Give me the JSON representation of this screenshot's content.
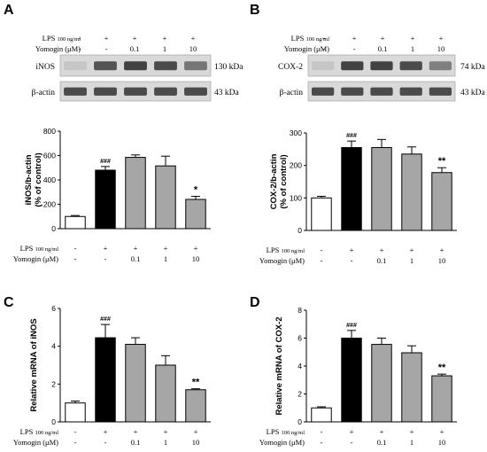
{
  "condition_labels": {
    "lps_label": "LPS",
    "lps_unit": "100 ng/ml",
    "yomogin_label": "Yomogin (μM)",
    "lps_values": [
      "-",
      "+",
      "+",
      "+",
      "+"
    ],
    "yomogin_values": [
      "-",
      "-",
      "0.1",
      "1",
      "10"
    ]
  },
  "blots": [
    {
      "panel": "A",
      "protein": "iNOS",
      "protein_size": "130 kDa",
      "loading": "β-actin",
      "loading_size": "43 kDa",
      "band_intensity": [
        0.1,
        0.75,
        0.85,
        0.8,
        0.55
      ],
      "actin_intensity": [
        0.8,
        0.8,
        0.8,
        0.8,
        0.8
      ]
    },
    {
      "panel": "B",
      "protein": "COX-2",
      "protein_size": "74 kDa",
      "loading": "β-actin",
      "loading_size": "43 kDa",
      "band_intensity": [
        0.1,
        0.85,
        0.85,
        0.8,
        0.5
      ],
      "actin_intensity": [
        0.8,
        0.8,
        0.8,
        0.8,
        0.8
      ]
    }
  ],
  "chart_data": [
    {
      "panel": "A",
      "type": "bar",
      "title": "",
      "ylabel_line1": "iNOS/b-actin",
      "ylabel_line2": "(% of control)",
      "ylim": [
        0,
        800
      ],
      "yticks": [
        "0",
        "200",
        "400",
        "600",
        "800"
      ],
      "categories": [
        "-/-",
        "+/-",
        "+/0.1",
        "+/1",
        "+/10"
      ],
      "values": [
        100,
        480,
        585,
        515,
        240
      ],
      "errors": [
        8,
        30,
        20,
        80,
        25
      ],
      "annotations": [
        "",
        "###",
        "",
        "",
        "*"
      ],
      "bar_colors": [
        "#ffffff",
        "#000000",
        "#a6a6a6",
        "#a6a6a6",
        "#a6a6a6"
      ]
    },
    {
      "panel": "B",
      "type": "bar",
      "title": "",
      "ylabel_line1": "COX-2/b-actin",
      "ylabel_line2": "(% of control)",
      "ylim": [
        0,
        300
      ],
      "yticks": [
        "0",
        "100",
        "200",
        "300"
      ],
      "categories": [
        "-/-",
        "+/-",
        "+/0.1",
        "+/1",
        "+/10"
      ],
      "values": [
        100,
        255,
        255,
        235,
        178
      ],
      "errors": [
        5,
        20,
        25,
        22,
        15
      ],
      "annotations": [
        "",
        "###",
        "",
        "",
        "**"
      ],
      "bar_colors": [
        "#ffffff",
        "#000000",
        "#a6a6a6",
        "#a6a6a6",
        "#a6a6a6"
      ]
    },
    {
      "panel": "C",
      "type": "bar",
      "title": "",
      "ylabel_line1": "Relative mRNA of iNOS",
      "ylabel_line2": "",
      "ylim": [
        0,
        6
      ],
      "yticks": [
        "0",
        "2",
        "4",
        "6"
      ],
      "categories": [
        "-/-",
        "+/-",
        "+/0.1",
        "+/1",
        "+/10"
      ],
      "values": [
        1.0,
        4.45,
        4.1,
        3.0,
        1.7
      ],
      "errors": [
        0.1,
        0.7,
        0.35,
        0.5,
        0.05
      ],
      "annotations": [
        "",
        "###",
        "",
        "",
        "**"
      ],
      "bar_colors": [
        "#ffffff",
        "#000000",
        "#a6a6a6",
        "#a6a6a6",
        "#a6a6a6"
      ]
    },
    {
      "panel": "D",
      "type": "bar",
      "title": "",
      "ylabel_line1": "Relative mRNA of COX-2",
      "ylabel_line2": "",
      "ylim": [
        0,
        8
      ],
      "yticks": [
        "0",
        "2",
        "4",
        "6",
        "8"
      ],
      "categories": [
        "-/-",
        "+/-",
        "+/0.1",
        "+/1",
        "+/10"
      ],
      "values": [
        1.0,
        6.0,
        5.55,
        4.95,
        3.3
      ],
      "errors": [
        0.08,
        0.55,
        0.45,
        0.5,
        0.12
      ],
      "annotations": [
        "",
        "###",
        "",
        "",
        "**"
      ],
      "bar_colors": [
        "#ffffff",
        "#000000",
        "#a6a6a6",
        "#a6a6a6",
        "#a6a6a6"
      ]
    }
  ]
}
